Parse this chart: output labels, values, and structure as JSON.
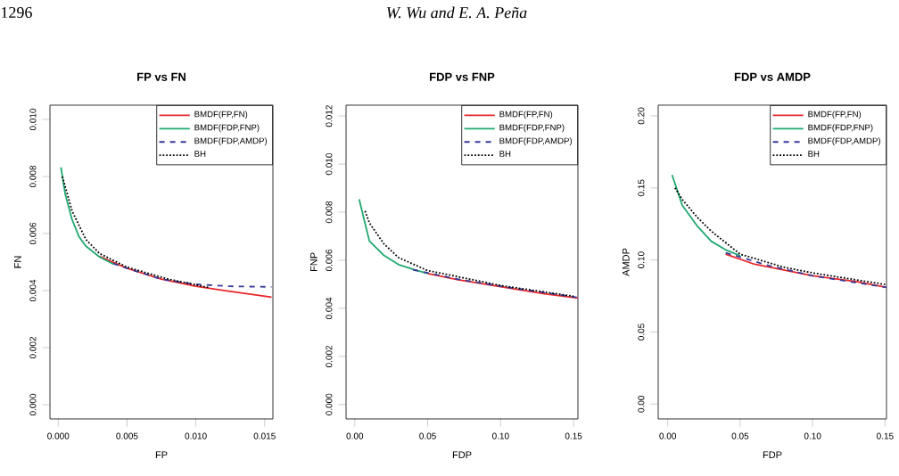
{
  "chart_data": [
    {
      "type": "line",
      "title": "FP vs FN",
      "xlabel": "FP",
      "ylabel": "FN",
      "annotations": [
        "1296",
        "W. Wu and E. A. Peña"
      ],
      "xlim": [
        -0.0006,
        0.0156
      ],
      "ylim": [
        -0.0005,
        0.0105
      ],
      "xticks": [
        {
          "value": 0,
          "label": "0.000"
        },
        {
          "value": 0.005,
          "label": "0.005"
        },
        {
          "value": 0.01,
          "label": "0.010"
        },
        {
          "value": 0.015,
          "label": "0.015"
        }
      ],
      "yticks": [
        {
          "value": 0,
          "label": "0.000"
        },
        {
          "value": 0.002,
          "label": "0.002"
        },
        {
          "value": 0.004,
          "label": "0.004"
        },
        {
          "value": 0.006,
          "label": "0.006"
        },
        {
          "value": 0.008,
          "label": "0.008"
        },
        {
          "value": 0.01,
          "label": "0.010"
        }
      ],
      "legend": "top right",
      "series": [
        {
          "name": "BMDF(FP,FN)",
          "color": "#e8262a",
          "line_style": "solid",
          "x": [
            0.003,
            0.005,
            0.0075,
            0.01,
            0.0125,
            0.0155
          ],
          "values": [
            0.0052,
            0.00478,
            0.0044,
            0.00415,
            0.00397,
            0.00377
          ]
        },
        {
          "name": "BMDF(FDP,FNP)",
          "color": "#1fa870",
          "line_style": "solid",
          "x": [
            0.0002,
            0.0005,
            0.001,
            0.0015,
            0.002,
            0.003,
            0.004
          ],
          "values": [
            0.00832,
            0.0074,
            0.0065,
            0.0059,
            0.00556,
            0.00518,
            0.00493
          ]
        },
        {
          "name": "BMDF(FDP,AMDP)",
          "color": "#3a3a9a",
          "line_style": "dashed",
          "x": [
            0.004,
            0.005,
            0.0075,
            0.01,
            0.0125,
            0.0155
          ],
          "values": [
            0.00495,
            0.00478,
            0.0044,
            0.00422,
            0.00415,
            0.00413
          ]
        },
        {
          "name": "BH",
          "color": "#000000",
          "line_style": "dotted",
          "x": [
            0.0003,
            0.001,
            0.002,
            0.003,
            0.005,
            0.008,
            0.011
          ],
          "values": [
            0.008,
            0.0068,
            0.0058,
            0.0053,
            0.00482,
            0.0044,
            0.0041
          ]
        }
      ]
    },
    {
      "type": "line",
      "title": "FDP vs FNP",
      "xlabel": "FDP",
      "ylabel": "FNP",
      "xlim": [
        -0.006,
        0.153
      ],
      "ylim": [
        -0.0006,
        0.01245
      ],
      "xticks": [
        {
          "value": 0,
          "label": "0.00"
        },
        {
          "value": 0.05,
          "label": "0.05"
        },
        {
          "value": 0.1,
          "label": "0.10"
        },
        {
          "value": 0.15,
          "label": "0.15"
        }
      ],
      "yticks": [
        {
          "value": 0,
          "label": "0.000"
        },
        {
          "value": 0.002,
          "label": "0.002"
        },
        {
          "value": 0.004,
          "label": "0.004"
        },
        {
          "value": 0.006,
          "label": "0.006"
        },
        {
          "value": 0.008,
          "label": "0.008"
        },
        {
          "value": 0.01,
          "label": "0.010"
        },
        {
          "value": 0.012,
          "label": "0.012"
        }
      ],
      "legend": "top right",
      "series": [
        {
          "name": "BMDF(FP,FN)",
          "color": "#e8262a",
          "line_style": "solid",
          "x": [
            0.05,
            0.07,
            0.1,
            0.13,
            0.153
          ],
          "values": [
            0.00545,
            0.0052,
            0.0049,
            0.0046,
            0.00443
          ]
        },
        {
          "name": "BMDF(FDP,FNP)",
          "color": "#1fa870",
          "line_style": "solid",
          "x": [
            0.003,
            0.01,
            0.02,
            0.03,
            0.04,
            0.05
          ],
          "values": [
            0.00854,
            0.0068,
            0.0062,
            0.00582,
            0.00562,
            0.00545
          ]
        },
        {
          "name": "BMDF(FDP,AMDP)",
          "color": "#3a3a9a",
          "line_style": "dashed",
          "x": [
            0.04,
            0.07,
            0.1,
            0.153
          ],
          "values": [
            0.0056,
            0.00522,
            0.00492,
            0.00445
          ]
        },
        {
          "name": "BH",
          "color": "#000000",
          "line_style": "dotted",
          "x": [
            0.007,
            0.01,
            0.02,
            0.03,
            0.05,
            0.08,
            0.1,
            0.15
          ],
          "values": [
            0.00805,
            0.00755,
            0.00668,
            0.00611,
            0.00557,
            0.0052,
            0.00495,
            0.0045
          ]
        }
      ]
    },
    {
      "type": "line",
      "title": "FDP vs AMDP",
      "xlabel": "FDP",
      "ylabel": "AMDP",
      "xlim": [
        -0.0066,
        0.151
      ],
      "ylim": [
        -0.0103,
        0.2074
      ],
      "xticks": [
        {
          "value": 0,
          "label": "0.00"
        },
        {
          "value": 0.05,
          "label": "0.05"
        },
        {
          "value": 0.1,
          "label": "0.10"
        },
        {
          "value": 0.15,
          "label": "0.15"
        }
      ],
      "yticks": [
        {
          "value": 0,
          "label": "0.00"
        },
        {
          "value": 0.05,
          "label": "0.05"
        },
        {
          "value": 0.1,
          "label": "0.10"
        },
        {
          "value": 0.15,
          "label": "0.15"
        },
        {
          "value": 0.2,
          "label": "0.20"
        }
      ],
      "legend": "top right",
      "series": [
        {
          "name": "BMDF(FP,FN)",
          "color": "#e8262a",
          "line_style": "solid",
          "x": [
            0.04,
            0.06,
            0.08,
            0.1,
            0.13,
            0.151
          ],
          "values": [
            0.104,
            0.097,
            0.093,
            0.089,
            0.085,
            0.081
          ]
        },
        {
          "name": "BMDF(FDP,FNP)",
          "color": "#1fa870",
          "line_style": "solid",
          "x": [
            0.003,
            0.01,
            0.02,
            0.03,
            0.04,
            0.05
          ],
          "values": [
            0.159,
            0.138,
            0.124,
            0.113,
            0.107,
            0.103
          ]
        },
        {
          "name": "BMDF(FDP,AMDP)",
          "color": "#3a3a9a",
          "line_style": "dashed",
          "x": [
            0.04,
            0.07,
            0.1,
            0.151
          ],
          "values": [
            0.105,
            0.096,
            0.089,
            0.081
          ]
        },
        {
          "name": "BH",
          "color": "#000000",
          "line_style": "dotted",
          "x": [
            0.005,
            0.01,
            0.02,
            0.03,
            0.05,
            0.08,
            0.1,
            0.15
          ],
          "values": [
            0.15,
            0.142,
            0.13,
            0.12,
            0.104,
            0.095,
            0.091,
            0.083
          ]
        }
      ]
    }
  ]
}
